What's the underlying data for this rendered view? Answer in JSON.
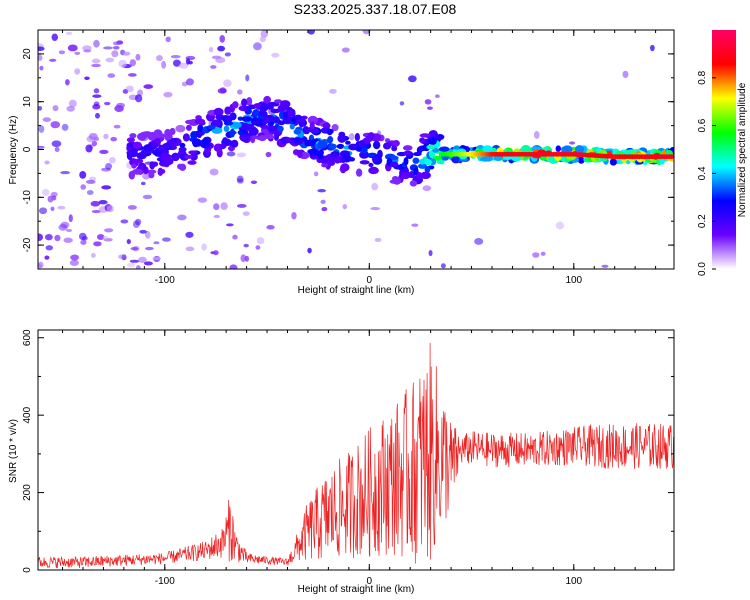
{
  "title": "S233.2025.337.18.07.E08",
  "colorbar": {
    "label": "Normalized spectral amplitude",
    "range": [
      0,
      1
    ],
    "ticks": [
      "0.0",
      "0.2",
      "0.4",
      "0.6",
      "0.8"
    ],
    "tick_values": [
      0.0,
      0.2,
      0.4,
      0.6,
      0.8
    ],
    "stops": [
      "#ffffff",
      "#6a00ff",
      "#0000ff",
      "#00ffff",
      "#00ff00",
      "#ffff00",
      "#ff0000",
      "#ff0066"
    ]
  },
  "chart_data": [
    {
      "type": "heatmap",
      "title": "S233.2025.337.18.07.E08",
      "xlabel": "Height of straight line (km)",
      "ylabel": "Frequency (Hz)",
      "xlim": [
        -162,
        149
      ],
      "ylim": [
        -25,
        25
      ],
      "x_ticks": [
        "-100",
        "0",
        "100"
      ],
      "x_tick_values": [
        -100,
        0,
        100
      ],
      "y_ticks": [
        "20",
        "10",
        "0",
        "-10",
        "-20"
      ],
      "y_tick_values": [
        20,
        10,
        0,
        -10,
        -20
      ],
      "ridge": {
        "x": [
          -115,
          -100,
          -90,
          -80,
          -70,
          -60,
          -50,
          -40,
          -30,
          -20,
          -10,
          0,
          10,
          20,
          25,
          30,
          40,
          60,
          80,
          100,
          120,
          149
        ],
        "frequency": [
          -1,
          -1,
          1,
          3,
          4,
          6,
          7,
          5,
          2,
          1,
          0,
          -1,
          -2,
          -3,
          -2,
          -1,
          -1,
          -1,
          -1,
          -1,
          -1.5,
          -1.5
        ],
        "amplitude": [
          0.25,
          0.25,
          0.3,
          0.35,
          0.35,
          0.35,
          0.3,
          0.35,
          0.35,
          0.35,
          0.35,
          0.3,
          0.3,
          0.3,
          0.4,
          0.5,
          0.6,
          0.85,
          0.9,
          0.9,
          0.85,
          0.9
        ]
      }
    },
    {
      "type": "line",
      "xlabel": "Height of straight line (km)",
      "ylabel": "SNR (10 * v/v)",
      "xlim": [
        -162,
        149
      ],
      "ylim": [
        0,
        620
      ],
      "x_ticks": [
        "-100",
        "0",
        "100"
      ],
      "x_tick_values": [
        -100,
        0,
        100
      ],
      "y_ticks": [
        "0",
        "200",
        "400",
        "600"
      ],
      "y_tick_values": [
        0,
        200,
        400,
        600
      ],
      "series": [
        {
          "name": "SNR",
          "color": "#ee2222",
          "x": [
            -162,
            -140,
            -120,
            -100,
            -90,
            -80,
            -72,
            -68,
            -65,
            -60,
            -50,
            -40,
            -35,
            -30,
            -20,
            -10,
            0,
            10,
            20,
            25,
            30,
            35,
            40,
            45,
            50,
            60,
            80,
            100,
            120,
            149
          ],
          "mean": [
            20,
            20,
            25,
            30,
            40,
            50,
            70,
            110,
            60,
            30,
            25,
            20,
            60,
            100,
            140,
            170,
            200,
            230,
            250,
            270,
            300,
            290,
            270,
            310,
            315,
            310,
            310,
            320,
            320,
            320
          ],
          "spread": [
            15,
            15,
            15,
            15,
            20,
            25,
            40,
            90,
            40,
            15,
            10,
            10,
            40,
            80,
            120,
            140,
            170,
            190,
            230,
            260,
            290,
            200,
            120,
            40,
            45,
            45,
            45,
            50,
            60,
            60
          ]
        }
      ]
    }
  ]
}
